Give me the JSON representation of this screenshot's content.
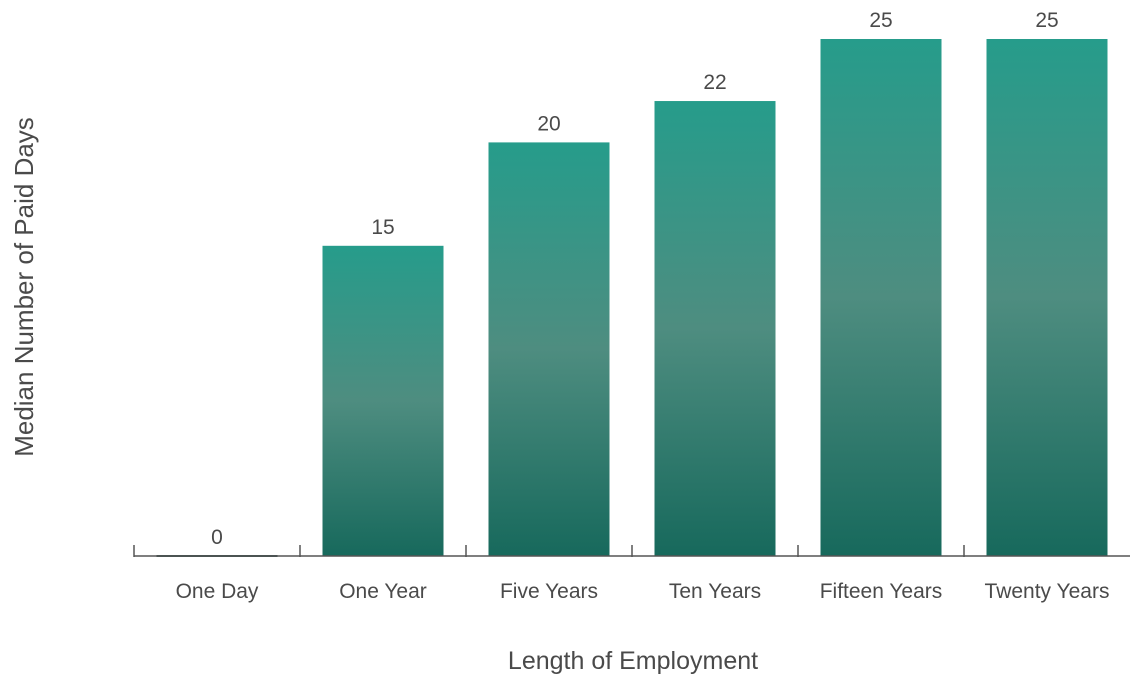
{
  "chart_data": {
    "type": "bar",
    "title": "",
    "xlabel": "Length of Employment",
    "ylabel": "Median Number of Paid Days",
    "categories": [
      "One Day",
      "One Year",
      "Five Years",
      "Ten Years",
      "Fifteen Years",
      "Twenty Years"
    ],
    "values": [
      0,
      15,
      20,
      22,
      25,
      25
    ],
    "data_labels": [
      "0",
      "15",
      "20",
      "22",
      "25",
      "25"
    ],
    "ylim": [
      0,
      25
    ],
    "grid": false,
    "legend": "none",
    "colors": {
      "bar_top": "#269c8b",
      "bar_mid": "#4e8d80",
      "bar_bottom": "#17695c",
      "axis": "#555555",
      "zero_line": "#2f4f48",
      "text": "#4a4a4a"
    }
  }
}
